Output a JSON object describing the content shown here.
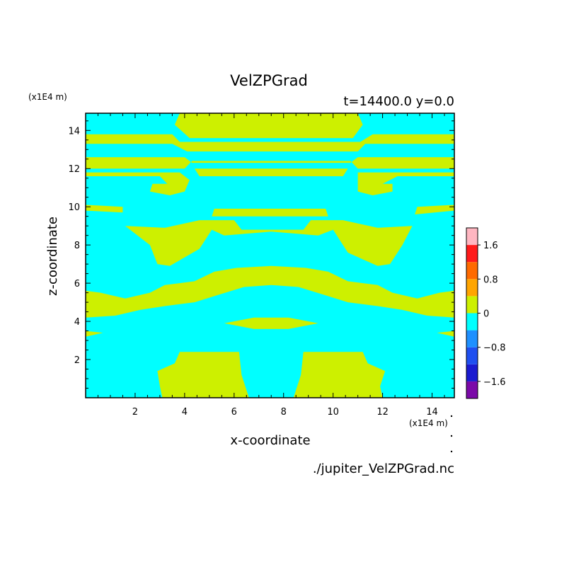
{
  "chart_data": {
    "type": "heatmap",
    "title": "VelZPGrad",
    "subtitle": "t=14400.0 y=0.0",
    "xlabel": "x-coordinate",
    "ylabel": "z-coordinate",
    "x_units": "(x1E4 m)",
    "y_units": "(x1E4 m)",
    "xlim": [
      0,
      14.9
    ],
    "ylim": [
      0,
      14.9
    ],
    "xticks": [
      "2",
      "4",
      "6",
      "8",
      "10",
      "12",
      "14"
    ],
    "yticks": [
      "2",
      "4",
      "6",
      "8",
      "10",
      "12",
      "14"
    ],
    "footer": "./jupiter_VelZPGrad.nc",
    "colorbar": {
      "levels": [
        -2.0,
        -1.6,
        -1.2,
        -0.8,
        -0.4,
        0,
        0.4,
        0.8,
        1.2,
        1.6,
        2.0
      ],
      "tick_labels": [
        "1.6",
        "0.8",
        "0",
        "−0.8",
        "−1.6"
      ],
      "colors": [
        "#7b0aa8",
        "#1a1ad0",
        "#1f4ff0",
        "#1e90ff",
        "#00ffff",
        "#cdf000",
        "#ffa500",
        "#ff6a00",
        "#ff1a1a",
        "#ffb6c1"
      ]
    },
    "background_color": "#00ffff",
    "fill_color": "#cdf000",
    "positive_regions": [
      [
        [
          3.8,
          14.9
        ],
        [
          11.0,
          14.9
        ],
        [
          11.2,
          14.3
        ],
        [
          10.8,
          13.6
        ],
        [
          4.2,
          13.6
        ],
        [
          3.6,
          14.3
        ]
      ],
      [
        [
          0,
          13.8
        ],
        [
          3.5,
          13.8
        ],
        [
          3.8,
          13.4
        ],
        [
          11.1,
          13.4
        ],
        [
          11.6,
          13.8
        ],
        [
          14.9,
          13.8
        ],
        [
          14.9,
          13.3
        ],
        [
          11.3,
          13.3
        ],
        [
          11.0,
          12.9
        ],
        [
          4.1,
          12.9
        ],
        [
          3.5,
          13.3
        ],
        [
          0,
          13.3
        ]
      ],
      [
        [
          0,
          12.6
        ],
        [
          4.0,
          12.6
        ],
        [
          4.3,
          12.3
        ],
        [
          10.7,
          12.3
        ],
        [
          11.0,
          12.6
        ],
        [
          14.9,
          12.6
        ],
        [
          14.9,
          12.0
        ],
        [
          11.0,
          12.0
        ],
        [
          10.7,
          12.4
        ],
        [
          4.3,
          12.4
        ],
        [
          4.0,
          12.0
        ],
        [
          0,
          12.0
        ]
      ],
      [
        [
          4.4,
          12.0
        ],
        [
          10.6,
          12.0
        ],
        [
          10.4,
          11.6
        ],
        [
          4.6,
          11.6
        ]
      ],
      [
        [
          0,
          11.8
        ],
        [
          3.8,
          11.8
        ],
        [
          4.2,
          11.4
        ],
        [
          4.0,
          10.8
        ],
        [
          3.4,
          10.6
        ],
        [
          2.6,
          10.8
        ],
        [
          2.7,
          11.2
        ],
        [
          3.3,
          11.2
        ],
        [
          3.0,
          11.6
        ],
        [
          0,
          11.6
        ]
      ],
      [
        [
          11.0,
          11.8
        ],
        [
          14.9,
          11.8
        ],
        [
          14.9,
          11.6
        ],
        [
          12.6,
          11.6
        ],
        [
          12.0,
          11.2
        ],
        [
          12.4,
          11.2
        ],
        [
          12.4,
          10.8
        ],
        [
          11.6,
          10.6
        ],
        [
          11.0,
          10.8
        ]
      ],
      [
        [
          0,
          10.1
        ],
        [
          1.5,
          10.0
        ],
        [
          1.5,
          9.7
        ],
        [
          0,
          9.8
        ]
      ],
      [
        [
          13.4,
          10.0
        ],
        [
          14.9,
          10.1
        ],
        [
          14.9,
          9.8
        ],
        [
          13.3,
          9.6
        ]
      ],
      [
        [
          5.2,
          9.9
        ],
        [
          9.7,
          9.9
        ],
        [
          9.8,
          9.5
        ],
        [
          5.1,
          9.5
        ]
      ],
      [
        [
          1.6,
          9.0
        ],
        [
          3.2,
          8.9
        ],
        [
          4.6,
          9.3
        ],
        [
          6.0,
          9.3
        ],
        [
          6.3,
          8.8
        ],
        [
          7.5,
          8.8
        ],
        [
          8.8,
          8.8
        ],
        [
          9.1,
          9.3
        ],
        [
          10.4,
          9.3
        ],
        [
          11.8,
          8.9
        ],
        [
          13.2,
          9.0
        ],
        [
          12.8,
          8.0
        ],
        [
          12.3,
          7.0
        ],
        [
          11.8,
          6.9
        ],
        [
          10.6,
          7.6
        ],
        [
          10.0,
          8.8
        ],
        [
          9.4,
          8.5
        ],
        [
          7.5,
          8.7
        ],
        [
          5.6,
          8.5
        ],
        [
          5.1,
          8.8
        ],
        [
          4.6,
          7.8
        ],
        [
          3.4,
          6.9
        ],
        [
          2.9,
          7.0
        ],
        [
          2.6,
          8.0
        ]
      ],
      [
        [
          0,
          5.6
        ],
        [
          0.6,
          5.5
        ],
        [
          1.6,
          5.2
        ],
        [
          2.6,
          5.5
        ],
        [
          3.2,
          5.9
        ],
        [
          4.4,
          6.1
        ],
        [
          5.2,
          6.6
        ],
        [
          6.1,
          6.8
        ],
        [
          7.5,
          6.9
        ],
        [
          8.9,
          6.8
        ],
        [
          9.8,
          6.6
        ],
        [
          10.6,
          6.1
        ],
        [
          11.8,
          5.9
        ],
        [
          12.4,
          5.5
        ],
        [
          13.4,
          5.2
        ],
        [
          14.3,
          5.5
        ],
        [
          14.9,
          5.6
        ],
        [
          14.9,
          4.2
        ],
        [
          13.8,
          4.3
        ],
        [
          12.8,
          4.6
        ],
        [
          11.8,
          4.8
        ],
        [
          10.6,
          5.0
        ],
        [
          9.6,
          5.4
        ],
        [
          8.6,
          5.8
        ],
        [
          7.5,
          5.9
        ],
        [
          6.4,
          5.8
        ],
        [
          5.4,
          5.4
        ],
        [
          4.4,
          5.0
        ],
        [
          3.2,
          4.8
        ],
        [
          2.2,
          4.6
        ],
        [
          1.2,
          4.3
        ],
        [
          0,
          4.2
        ]
      ],
      [
        [
          5.6,
          3.9
        ],
        [
          6.8,
          4.2
        ],
        [
          8.2,
          4.2
        ],
        [
          9.4,
          3.9
        ],
        [
          8.2,
          3.6
        ],
        [
          6.8,
          3.6
        ]
      ],
      [
        [
          0,
          3.5
        ],
        [
          0.7,
          3.4
        ],
        [
          0,
          3.2
        ]
      ],
      [
        [
          14.2,
          3.4
        ],
        [
          14.9,
          3.5
        ],
        [
          14.9,
          3.2
        ]
      ],
      [
        [
          3.1,
          0
        ],
        [
          6.6,
          0
        ],
        [
          6.3,
          1.2
        ],
        [
          6.2,
          2.4
        ],
        [
          3.8,
          2.4
        ],
        [
          3.6,
          1.8
        ],
        [
          2.9,
          1.4
        ],
        [
          3.0,
          0.6
        ]
      ],
      [
        [
          8.4,
          0
        ],
        [
          12.0,
          0
        ],
        [
          11.9,
          0.6
        ],
        [
          12.1,
          1.4
        ],
        [
          11.4,
          1.8
        ],
        [
          11.2,
          2.4
        ],
        [
          8.8,
          2.4
        ],
        [
          8.7,
          1.2
        ]
      ]
    ]
  }
}
